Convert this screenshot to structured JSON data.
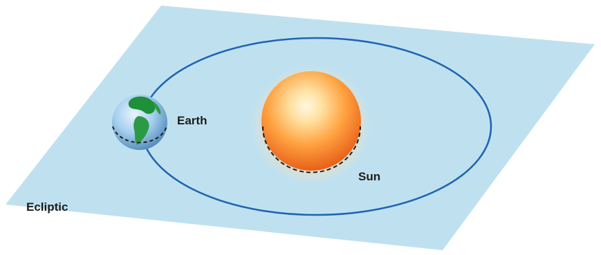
{
  "labels": {
    "earth": "Earth",
    "sun": "Sun",
    "plane": "Ecliptic"
  },
  "colors": {
    "plane": "#bfe1ef",
    "orbit": "#1f64b2",
    "sun_core": "#fff4cf",
    "sun_mid": "#ffb64a",
    "sun_edge": "#ee6a1c",
    "sun_glow": "#ffd6a0",
    "earth_ocean": "#8cc4ea",
    "earth_land": "#1f8f3a",
    "dash": "#1d1d1b"
  },
  "icons": {
    "sun": "sun-sphere-icon",
    "earth": "earth-globe-icon"
  }
}
